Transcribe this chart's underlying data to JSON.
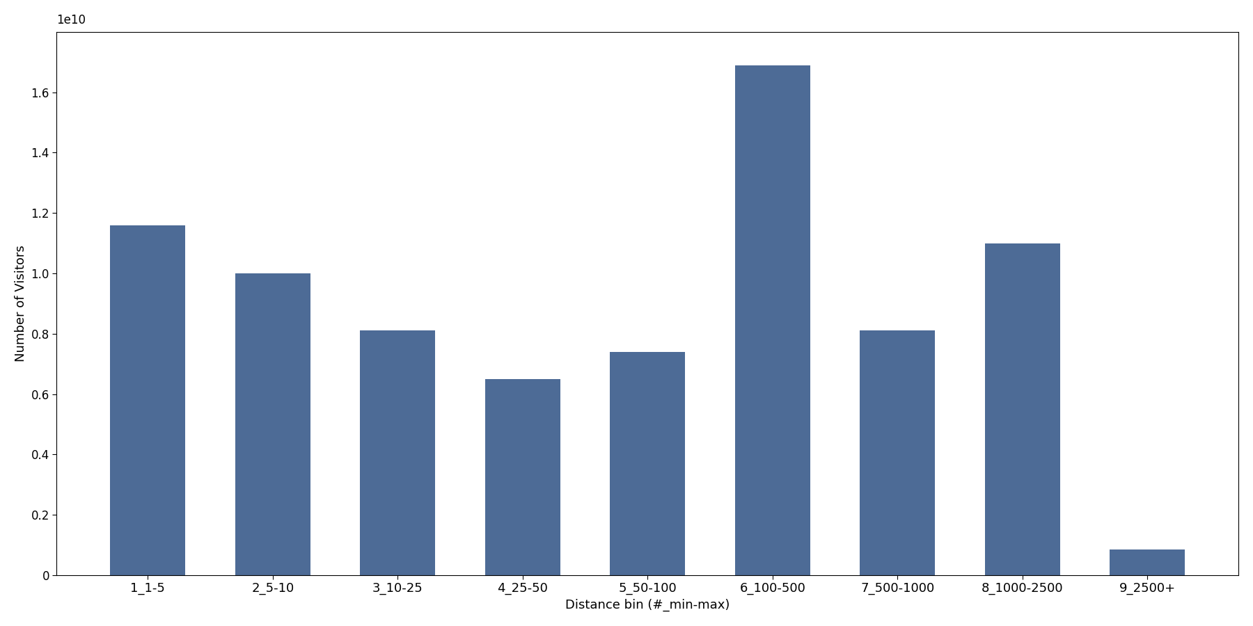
{
  "categories": [
    "1_1-5",
    "2_5-10",
    "3_10-25",
    "4_25-50",
    "5_50-100",
    "6_100-500",
    "7_500-1000",
    "8_1000-2500",
    "9_2500+"
  ],
  "values": [
    11600000000.0,
    10000000000.0,
    8100000000.0,
    6500000000.0,
    7400000000.0,
    16900000000.0,
    8100000000.0,
    11000000000.0,
    850000000.0
  ],
  "bar_color": "#4d6b96",
  "xlabel": "Distance bin (#_min-max)",
  "ylabel": "Number of Visitors",
  "ylim": [
    0,
    18000000000.0
  ],
  "yticks": [
    0,
    2000000000.0,
    4000000000.0,
    6000000000.0,
    8000000000.0,
    10000000000.0,
    12000000000.0,
    14000000000.0,
    16000000000.0
  ],
  "ytick_labels": [
    "0",
    "0.2",
    "0.4",
    "0.6",
    "0.8",
    "1.0",
    "1.2",
    "1.4",
    "1.6"
  ],
  "figsize": [
    18.0,
    9.0
  ],
  "dpi": 100,
  "bar_width": 0.6
}
